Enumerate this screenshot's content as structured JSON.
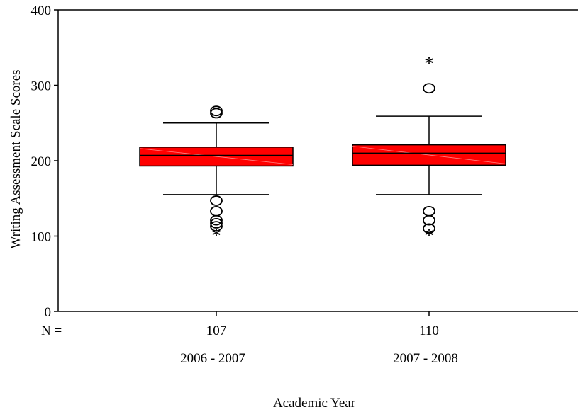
{
  "chart_data": {
    "type": "box",
    "title": "",
    "xlabel": "Academic Year",
    "ylabel": "Writing Assessment Scale Scores",
    "ylim": [
      0,
      400
    ],
    "y_ticks": [
      "0",
      "100",
      "200",
      "300",
      "400"
    ],
    "n_label": "N =",
    "box_color": "#ff0000",
    "groups": [
      {
        "category": "2006 - 2007",
        "n": "107",
        "whisker_low": 155,
        "q1": 193,
        "median": 207,
        "q3": 218,
        "whisker_high": 250,
        "outliers": [
          263,
          266,
          147,
          133,
          121,
          117,
          113
        ],
        "extremes": [
          103
        ]
      },
      {
        "category": "2007 - 2008",
        "n": "110",
        "whisker_low": 155,
        "q1": 194,
        "median": 210,
        "q3": 221,
        "whisker_high": 259,
        "outliers": [
          296,
          133,
          121,
          110
        ],
        "extremes": [
          331,
          103
        ]
      }
    ]
  }
}
